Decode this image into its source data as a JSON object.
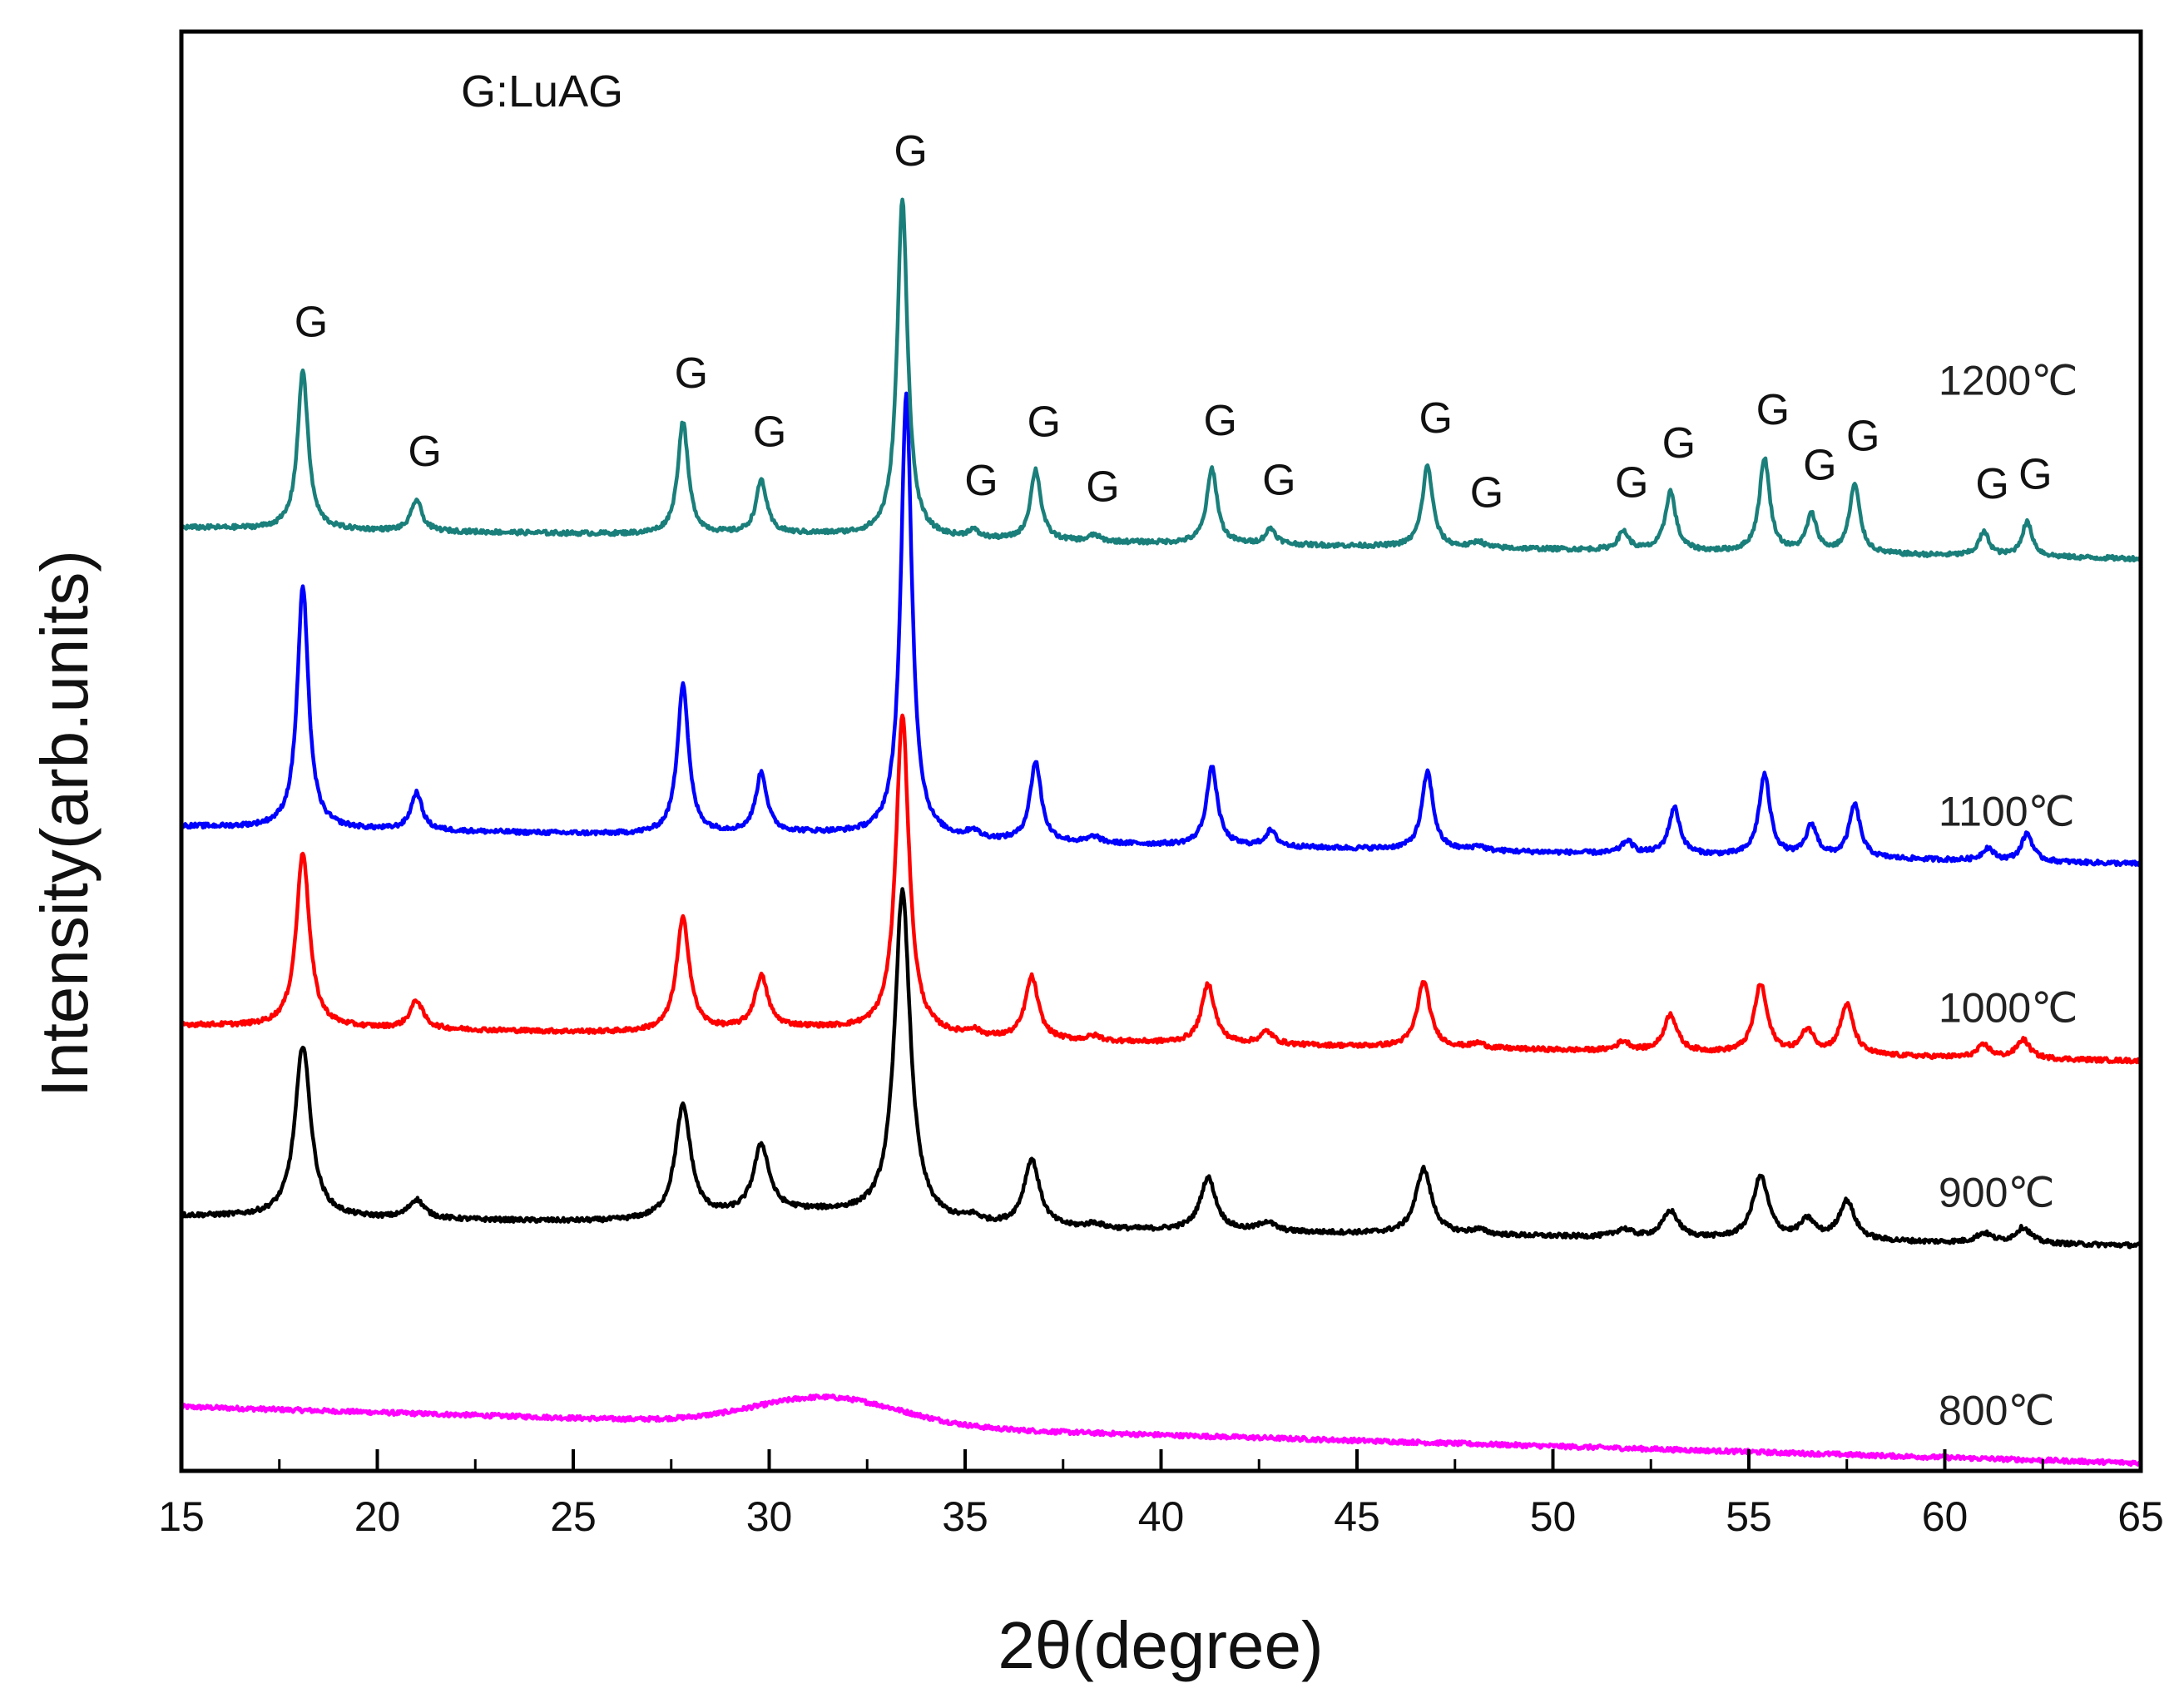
{
  "chart_data": {
    "type": "line",
    "title": "",
    "xlabel": "2θ(degree)",
    "ylabel": "Intensity(arb.units)",
    "xlim": [
      15,
      65
    ],
    "ylim": [
      0,
      9.2
    ],
    "xticks": [
      15,
      20,
      25,
      30,
      35,
      40,
      45,
      50,
      55,
      60,
      65
    ],
    "x_minor_step": 2.5,
    "yticks_visible": false,
    "grid": false,
    "legend_title": "G:LuAG",
    "series": [
      {
        "name": "800℃",
        "color": "#ff00ff",
        "baseline_start": 0.41,
        "baseline_end": 0.05,
        "hump": {
          "center": 31.5,
          "height": 0.18,
          "width": 2.6
        },
        "peaks": []
      },
      {
        "name": "900℃",
        "color": "#000000",
        "baseline_start": 1.63,
        "baseline_end": 1.44,
        "hump": {
          "center": 31,
          "height": 0.08,
          "width": 3
        },
        "peak_width": 0.24,
        "peaks": [
          {
            "x": 18.1,
            "h": 1.1
          },
          {
            "x": 21.0,
            "h": 0.12
          },
          {
            "x": 27.8,
            "h": 0.72
          },
          {
            "x": 29.8,
            "h": 0.43
          },
          {
            "x": 33.4,
            "h": 2.1
          },
          {
            "x": 35.2,
            "h": 0.04
          },
          {
            "x": 36.7,
            "h": 0.43
          },
          {
            "x": 38.3,
            "h": 0.03
          },
          {
            "x": 41.2,
            "h": 0.34
          },
          {
            "x": 42.7,
            "h": 0.06
          },
          {
            "x": 46.7,
            "h": 0.42
          },
          {
            "x": 48.1,
            "h": 0.03
          },
          {
            "x": 51.8,
            "h": 0.05
          },
          {
            "x": 53.0,
            "h": 0.17
          },
          {
            "x": 55.3,
            "h": 0.4
          },
          {
            "x": 56.5,
            "h": 0.12
          },
          {
            "x": 57.5,
            "h": 0.25
          },
          {
            "x": 61.0,
            "h": 0.06
          },
          {
            "x": 62.0,
            "h": 0.1
          }
        ]
      },
      {
        "name": "1000℃",
        "color": "#ff0000",
        "baseline_start": 2.85,
        "baseline_end": 2.62,
        "hump": {
          "center": 31,
          "height": 0.05,
          "width": 3
        },
        "peak_width": 0.2,
        "peaks": [
          {
            "x": 18.1,
            "h": 1.12
          },
          {
            "x": 21.0,
            "h": 0.18
          },
          {
            "x": 27.8,
            "h": 0.72
          },
          {
            "x": 29.8,
            "h": 0.33
          },
          {
            "x": 33.4,
            "h": 2.04
          },
          {
            "x": 35.2,
            "h": 0.04
          },
          {
            "x": 36.7,
            "h": 0.4
          },
          {
            "x": 38.3,
            "h": 0.03
          },
          {
            "x": 41.2,
            "h": 0.38
          },
          {
            "x": 42.7,
            "h": 0.08
          },
          {
            "x": 46.7,
            "h": 0.42
          },
          {
            "x": 48.1,
            "h": 0.03
          },
          {
            "x": 51.8,
            "h": 0.06
          },
          {
            "x": 53.0,
            "h": 0.24
          },
          {
            "x": 55.3,
            "h": 0.44
          },
          {
            "x": 56.5,
            "h": 0.15
          },
          {
            "x": 57.5,
            "h": 0.32
          },
          {
            "x": 61.0,
            "h": 0.08
          },
          {
            "x": 62.0,
            "h": 0.12
          }
        ]
      },
      {
        "name": "1100℃",
        "color": "#0000ff",
        "baseline_start": 4.12,
        "baseline_end": 3.88,
        "hump": {
          "center": 31,
          "height": 0.03,
          "width": 3
        },
        "peak_width": 0.17,
        "peaks": [
          {
            "x": 18.1,
            "h": 1.55
          },
          {
            "x": 21.0,
            "h": 0.24
          },
          {
            "x": 27.8,
            "h": 0.96
          },
          {
            "x": 29.8,
            "h": 0.38
          },
          {
            "x": 33.5,
            "h": 2.83
          },
          {
            "x": 35.2,
            "h": 0.05
          },
          {
            "x": 36.8,
            "h": 0.51
          },
          {
            "x": 38.3,
            "h": 0.04
          },
          {
            "x": 41.3,
            "h": 0.5
          },
          {
            "x": 42.8,
            "h": 0.1
          },
          {
            "x": 46.8,
            "h": 0.5
          },
          {
            "x": 48.1,
            "h": 0.03
          },
          {
            "x": 51.9,
            "h": 0.08
          },
          {
            "x": 53.1,
            "h": 0.3
          },
          {
            "x": 55.4,
            "h": 0.52
          },
          {
            "x": 56.6,
            "h": 0.2
          },
          {
            "x": 57.7,
            "h": 0.34
          },
          {
            "x": 61.1,
            "h": 0.08
          },
          {
            "x": 62.1,
            "h": 0.18
          }
        ]
      },
      {
        "name": "1200℃",
        "color": "#1a7f7a",
        "baseline_start": 6.03,
        "baseline_end": 5.83,
        "hump": {
          "center": 31,
          "height": 0.02,
          "width": 3
        },
        "peak_width": 0.16,
        "peaks": [
          {
            "x": 18.1,
            "h": 1.02
          },
          {
            "x": 21.0,
            "h": 0.2
          },
          {
            "x": 27.8,
            "h": 0.72
          },
          {
            "x": 29.8,
            "h": 0.34
          },
          {
            "x": 33.4,
            "h": 2.16
          },
          {
            "x": 35.2,
            "h": 0.05
          },
          {
            "x": 36.8,
            "h": 0.45
          },
          {
            "x": 38.3,
            "h": 0.04
          },
          {
            "x": 41.3,
            "h": 0.48
          },
          {
            "x": 42.8,
            "h": 0.1
          },
          {
            "x": 46.8,
            "h": 0.52
          },
          {
            "x": 48.1,
            "h": 0.04
          },
          {
            "x": 51.8,
            "h": 0.12
          },
          {
            "x": 53.0,
            "h": 0.38
          },
          {
            "x": 55.4,
            "h": 0.6
          },
          {
            "x": 56.6,
            "h": 0.24
          },
          {
            "x": 57.7,
            "h": 0.44
          },
          {
            "x": 61.0,
            "h": 0.15
          },
          {
            "x": 62.1,
            "h": 0.22
          }
        ]
      }
    ],
    "peak_annotations": {
      "label": "G",
      "series": "1200℃",
      "positions": [
        18.1,
        21.0,
        27.8,
        29.8,
        33.4,
        35.2,
        36.8,
        38.3,
        41.3,
        42.8,
        46.8,
        48.1,
        51.8,
        53.0,
        55.4,
        56.6,
        57.7,
        61.0,
        62.1
      ]
    }
  }
}
